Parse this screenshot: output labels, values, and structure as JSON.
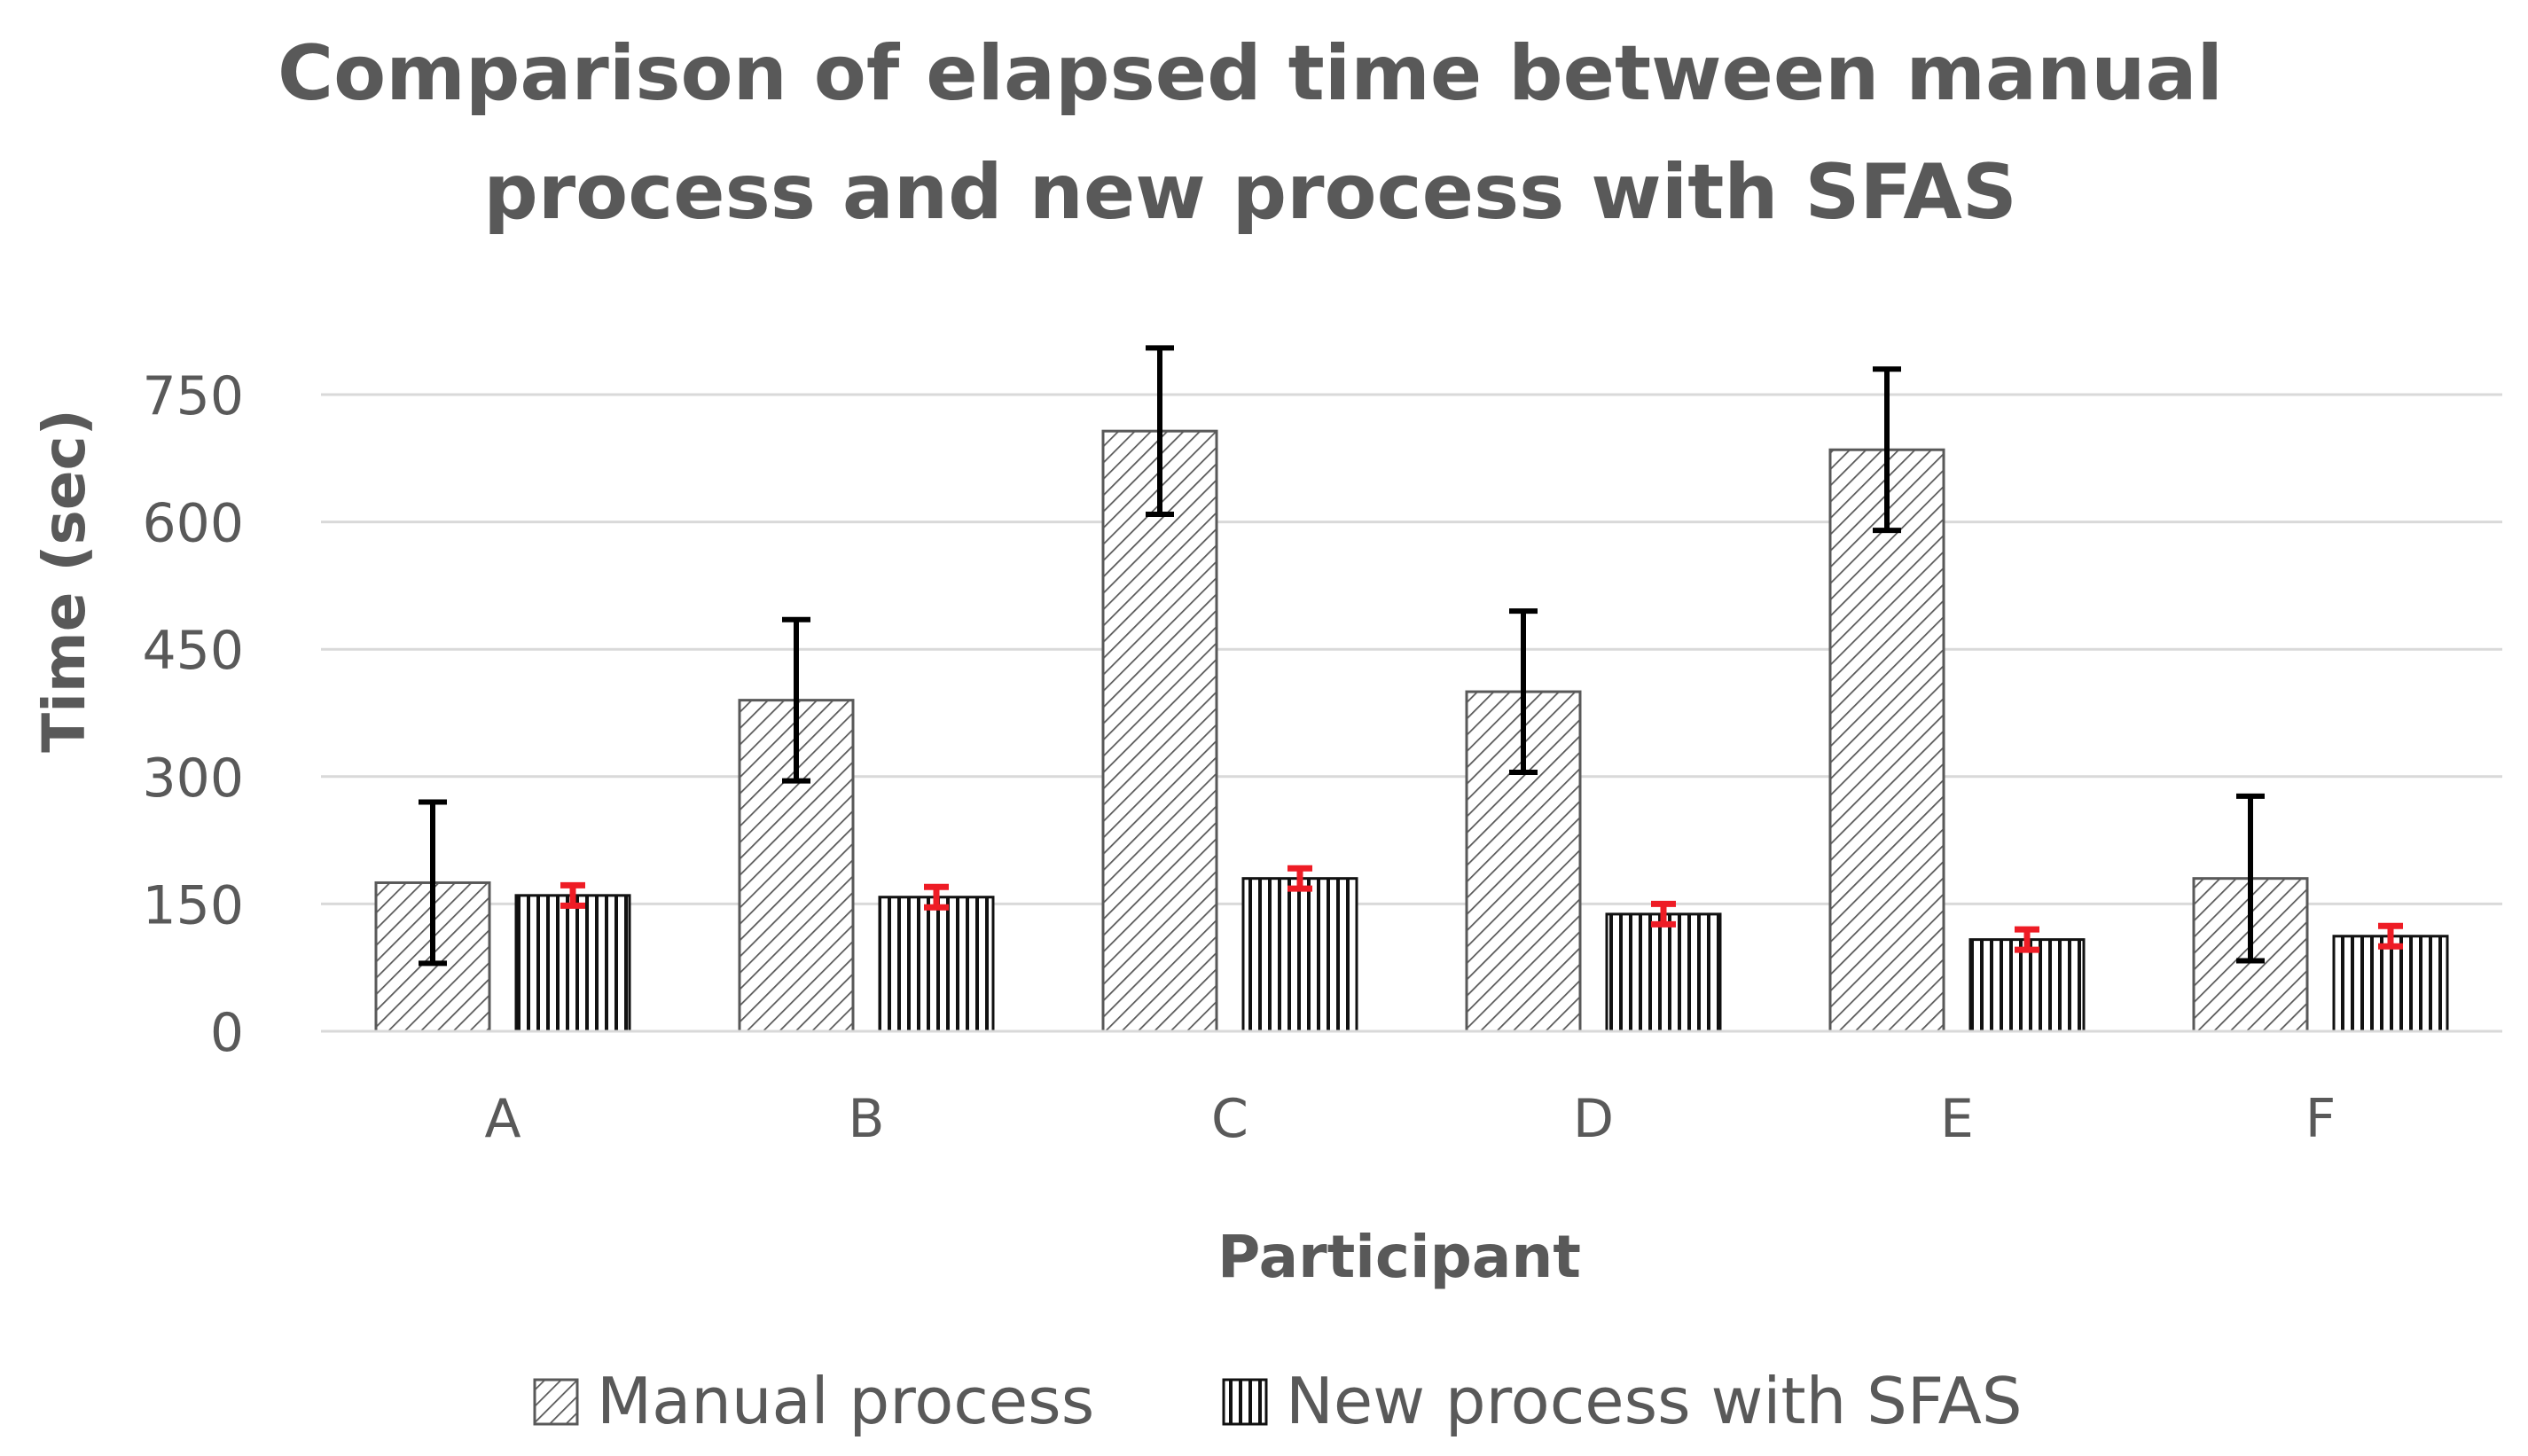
{
  "chart_data": {
    "type": "bar",
    "title": "Comparison of elapsed time between manual process and new process with SFAS",
    "title_lines": [
      "Comparison of elapsed time between manual",
      "process and new process with SFAS"
    ],
    "xlabel": "Participant",
    "ylabel": "Time (sec)",
    "categories": [
      "A",
      "B",
      "C",
      "D",
      "E",
      "F"
    ],
    "ylim": [
      0,
      750
    ],
    "yticks": [
      0,
      150,
      300,
      450,
      600,
      750
    ],
    "grid": true,
    "legend_position": "bottom",
    "series": [
      {
        "name": "Manual process",
        "pattern": "diagonal-hatch",
        "values": [
          175,
          390,
          707,
          400,
          685,
          180
        ],
        "error": [
          95,
          95,
          98,
          95,
          95,
          97
        ],
        "error_color": "#000000"
      },
      {
        "name": "New process with SFAS",
        "pattern": "vertical-hatch",
        "values": [
          160,
          158,
          180,
          138,
          108,
          112
        ],
        "error": [
          12,
          12,
          12,
          12,
          12,
          12
        ],
        "error_color": "#ee1c25"
      }
    ]
  }
}
